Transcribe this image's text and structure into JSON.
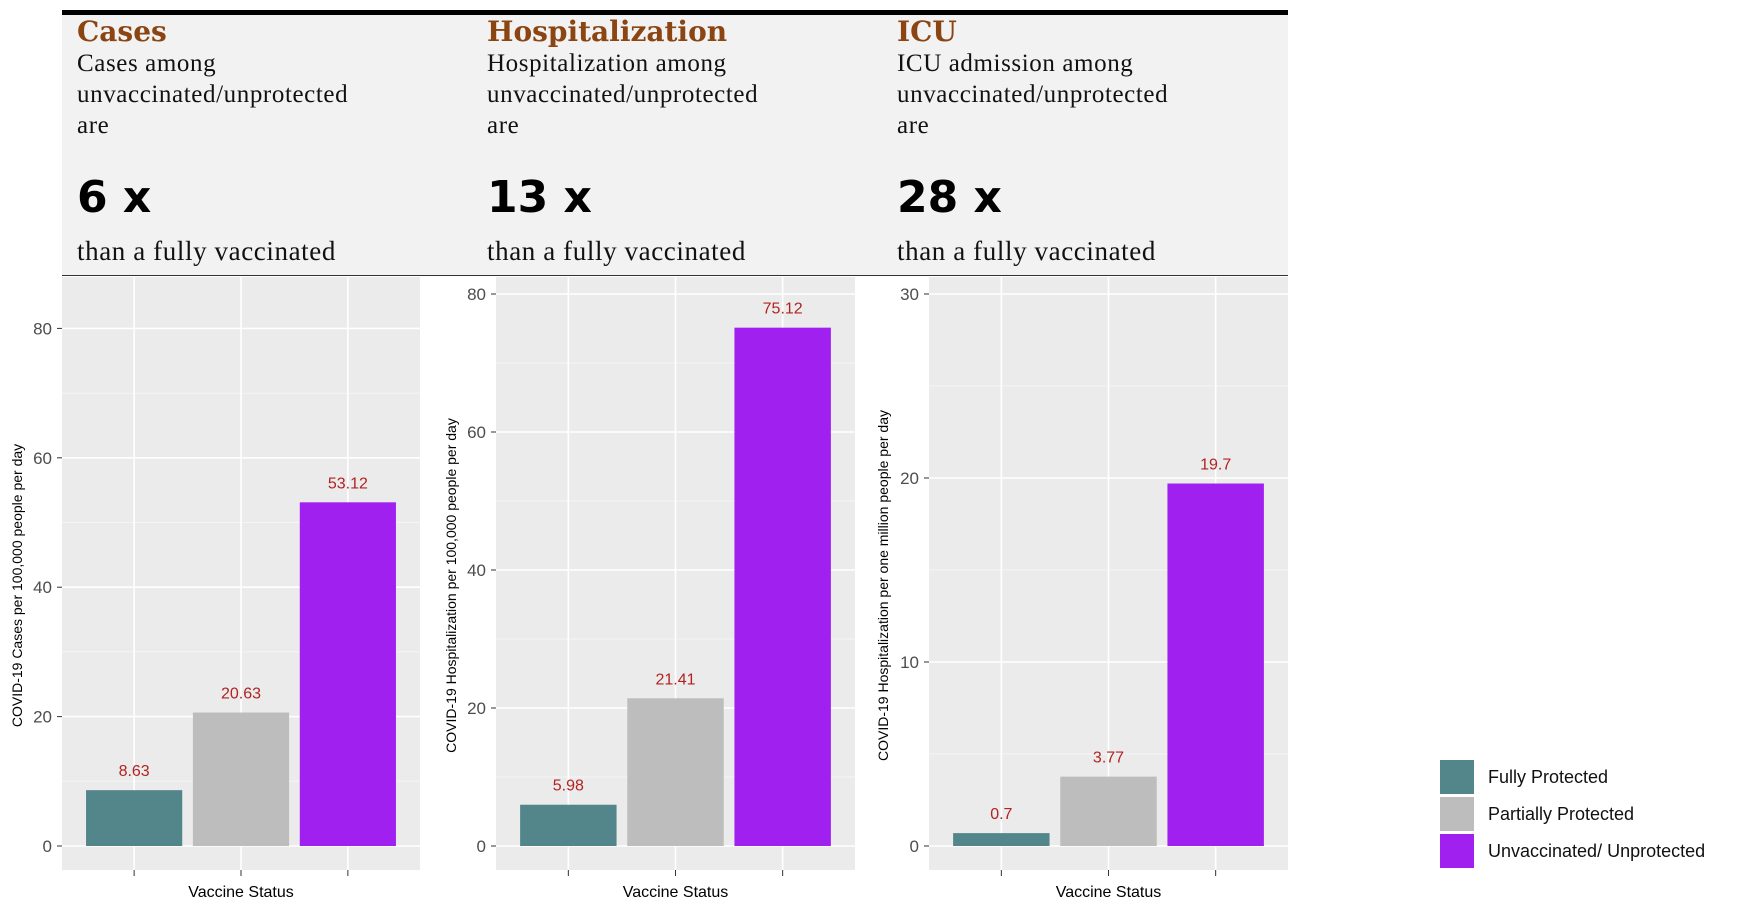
{
  "colors": {
    "fully": "#52868a",
    "partially": "#bdbdbd",
    "unvaccinated": "#a020f0",
    "title": "#8b4513",
    "value_label": "#b22222"
  },
  "panels": [
    {
      "title": "Cases",
      "desc": [
        "Cases among",
        "unvaccinated/unprotected",
        "are"
      ],
      "multiplier": "6 x",
      "than": "than a fully vaccinated"
    },
    {
      "title": "Hospitalization",
      "desc": [
        "Hospitalization among",
        "unvaccinated/unprotected",
        "are"
      ],
      "multiplier": "13 x",
      "than": "than a fully vaccinated"
    },
    {
      "title": "ICU",
      "desc": [
        "ICU admission among",
        "unvaccinated/unprotected",
        "are"
      ],
      "multiplier": "28 x",
      "than": "than a fully vaccinated"
    }
  ],
  "legend": {
    "items": [
      {
        "label": "Fully Protected",
        "color_key": "fully"
      },
      {
        "label": "Partially Protected",
        "color_key": "partially"
      },
      {
        "label": "Unvaccinated/ Unprotected",
        "color_key": "unvaccinated"
      }
    ]
  },
  "chart_data": [
    {
      "type": "bar",
      "categories": [
        "Fully Protected",
        "Partially Protected",
        "Unvaccinated/ Unprotected"
      ],
      "values": [
        8.63,
        20.63,
        53.12
      ],
      "value_labels": [
        "8.63",
        "20.63",
        "53.12"
      ],
      "xlabel": "Vaccine Status",
      "ylabel": "COVID-19 Cases per 100,000 people per day",
      "ylim": [
        0,
        83
      ],
      "yticks": [
        0,
        20,
        40,
        60,
        80
      ],
      "grid": true
    },
    {
      "type": "bar",
      "categories": [
        "Fully Protected",
        "Partially Protected",
        "Unvaccinated/ Unprotected"
      ],
      "values": [
        5.98,
        21.41,
        75.12
      ],
      "value_labels": [
        "5.98",
        "21.41",
        "75.12"
      ],
      "xlabel": "Vaccine Status",
      "ylabel": "COVID-19 Hospitalization per 100,000 people per day",
      "ylim": [
        0,
        80
      ],
      "yticks": [
        0,
        20,
        40,
        60,
        80
      ],
      "grid": true
    },
    {
      "type": "bar",
      "categories": [
        "Fully Protected",
        "Partially Protected",
        "Unvaccinated/ Unprotected"
      ],
      "values": [
        0.7,
        3.77,
        19.7
      ],
      "value_labels": [
        "0.7",
        "3.77",
        "19.7"
      ],
      "xlabel": "Vaccine Status",
      "ylabel": "COVID-19 Hospitalization per one million people per day",
      "ylim": [
        0,
        30
      ],
      "yticks": [
        0,
        10,
        20,
        30
      ],
      "grid": true
    }
  ]
}
